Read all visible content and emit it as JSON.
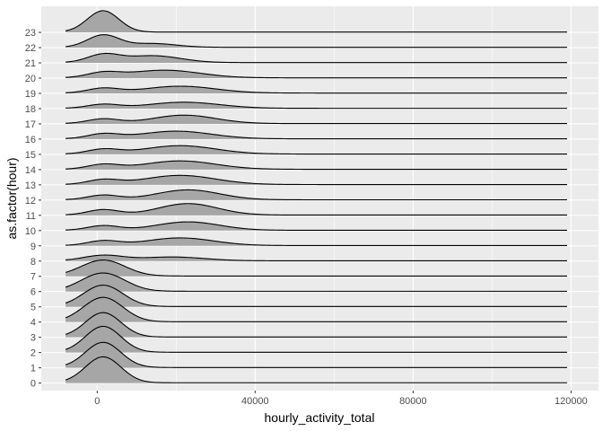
{
  "chart_data": {
    "type": "ridgeline",
    "title": "",
    "xlabel": "hourly_activity_total",
    "ylabel": "as.factor(hour)",
    "x_ticks": [
      0,
      40000,
      80000,
      120000
    ],
    "x_tick_labels": [
      "0",
      "40000",
      "80000",
      "120000"
    ],
    "xlim": [
      -10000,
      125000
    ],
    "density_range": [
      -8000,
      119000
    ],
    "grid": true,
    "legend": "none",
    "colors": {
      "panel": "#ebebeb",
      "grid": "#ffffff",
      "fill": "#a6a6a6",
      "line": "#000000"
    },
    "categories": [
      "0",
      "1",
      "2",
      "3",
      "4",
      "5",
      "6",
      "7",
      "8",
      "9",
      "10",
      "11",
      "12",
      "13",
      "14",
      "15",
      "16",
      "17",
      "18",
      "19",
      "20",
      "21",
      "22",
      "23"
    ],
    "series": [
      {
        "name": "0",
        "components": [
          {
            "mean": 1500,
            "sd": 4500,
            "height": 1.7
          }
        ]
      },
      {
        "name": "1",
        "components": [
          {
            "mean": 1500,
            "sd": 4500,
            "height": 1.65
          }
        ]
      },
      {
        "name": "2",
        "components": [
          {
            "mean": 1500,
            "sd": 4500,
            "height": 1.7
          }
        ]
      },
      {
        "name": "3",
        "components": [
          {
            "mean": 1500,
            "sd": 4500,
            "height": 1.6
          }
        ]
      },
      {
        "name": "4",
        "components": [
          {
            "mean": 1500,
            "sd": 5000,
            "height": 1.6
          }
        ]
      },
      {
        "name": "5",
        "components": [
          {
            "mean": 1500,
            "sd": 5000,
            "height": 1.4
          }
        ]
      },
      {
        "name": "6",
        "components": [
          {
            "mean": 1500,
            "sd": 5500,
            "height": 1.2
          }
        ]
      },
      {
        "name": "7",
        "components": [
          {
            "mean": 1500,
            "sd": 5500,
            "height": 1.05
          }
        ]
      },
      {
        "name": "8",
        "components": [
          {
            "mean": 1500,
            "sd": 5000,
            "height": 0.35
          },
          {
            "mean": 19000,
            "sd": 8000,
            "height": 0.25
          }
        ]
      },
      {
        "name": "9",
        "components": [
          {
            "mean": 1500,
            "sd": 4000,
            "height": 0.3
          },
          {
            "mean": 21000,
            "sd": 8500,
            "height": 0.5
          }
        ]
      },
      {
        "name": "10",
        "components": [
          {
            "mean": 1500,
            "sd": 4000,
            "height": 0.3
          },
          {
            "mean": 23000,
            "sd": 8000,
            "height": 0.55
          }
        ]
      },
      {
        "name": "11",
        "components": [
          {
            "mean": 1500,
            "sd": 4000,
            "height": 0.35
          },
          {
            "mean": 23000,
            "sd": 7500,
            "height": 0.75
          }
        ]
      },
      {
        "name": "12",
        "components": [
          {
            "mean": 1500,
            "sd": 4000,
            "height": 0.3
          },
          {
            "mean": 23000,
            "sd": 8000,
            "height": 0.65
          }
        ]
      },
      {
        "name": "13",
        "components": [
          {
            "mean": 1500,
            "sd": 4000,
            "height": 0.3
          },
          {
            "mean": 21000,
            "sd": 9000,
            "height": 0.6
          }
        ]
      },
      {
        "name": "14",
        "components": [
          {
            "mean": 1500,
            "sd": 4000,
            "height": 0.3
          },
          {
            "mean": 21000,
            "sd": 9000,
            "height": 0.55
          }
        ]
      },
      {
        "name": "15",
        "components": [
          {
            "mean": 1500,
            "sd": 4000,
            "height": 0.3
          },
          {
            "mean": 21000,
            "sd": 9000,
            "height": 0.55
          }
        ]
      },
      {
        "name": "16",
        "components": [
          {
            "mean": 1500,
            "sd": 4000,
            "height": 0.3
          },
          {
            "mean": 20000,
            "sd": 9000,
            "height": 0.5
          }
        ]
      },
      {
        "name": "17",
        "components": [
          {
            "mean": 1500,
            "sd": 4000,
            "height": 0.3
          },
          {
            "mean": 22000,
            "sd": 8000,
            "height": 0.55
          }
        ]
      },
      {
        "name": "18",
        "components": [
          {
            "mean": 1500,
            "sd": 4000,
            "height": 0.25
          },
          {
            "mean": 22000,
            "sd": 9000,
            "height": 0.4
          }
        ]
      },
      {
        "name": "19",
        "components": [
          {
            "mean": 1500,
            "sd": 4000,
            "height": 0.3
          },
          {
            "mean": 21000,
            "sd": 9000,
            "height": 0.45
          }
        ]
      },
      {
        "name": "20",
        "components": [
          {
            "mean": 1500,
            "sd": 4000,
            "height": 0.3
          },
          {
            "mean": 17000,
            "sd": 9000,
            "height": 0.5
          }
        ]
      },
      {
        "name": "21",
        "components": [
          {
            "mean": 1500,
            "sd": 4000,
            "height": 0.5
          },
          {
            "mean": 14000,
            "sd": 7000,
            "height": 0.45
          }
        ]
      },
      {
        "name": "22",
        "components": [
          {
            "mean": 1500,
            "sd": 4000,
            "height": 0.8
          },
          {
            "mean": 14000,
            "sd": 6000,
            "height": 0.25
          }
        ]
      },
      {
        "name": "23",
        "components": [
          {
            "mean": 1500,
            "sd": 4000,
            "height": 1.4
          }
        ]
      }
    ]
  }
}
